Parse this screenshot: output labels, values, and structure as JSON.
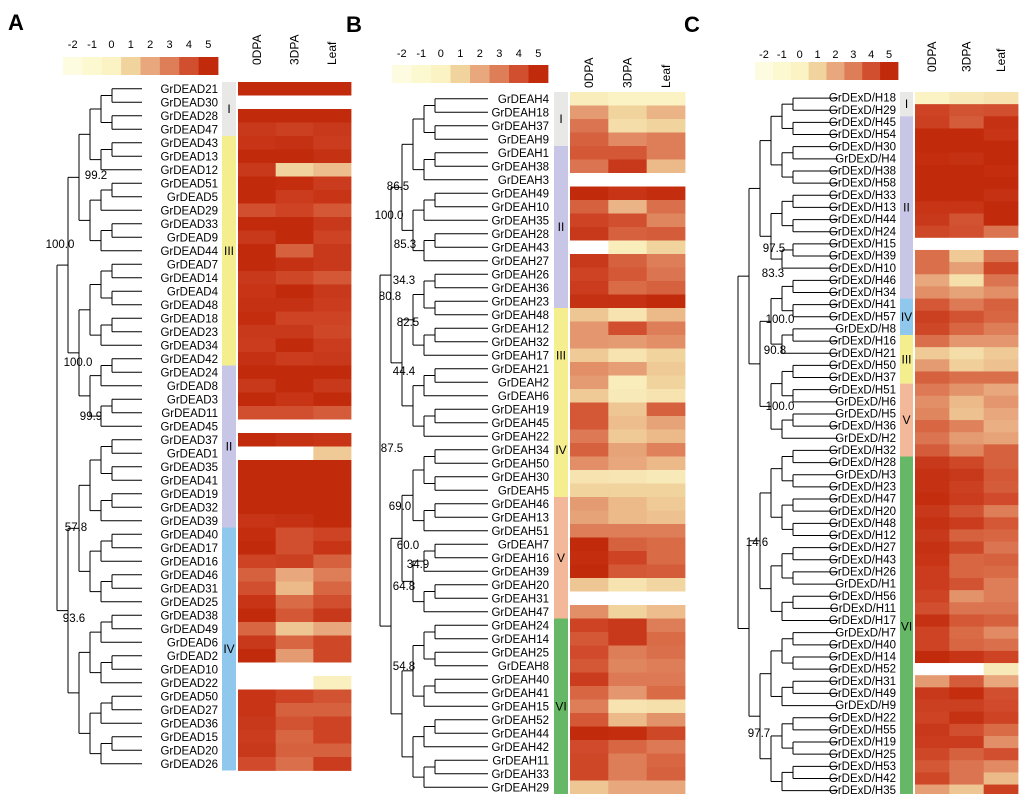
{
  "panels": [
    {
      "letter": "A",
      "legend_ticks": [
        "-2",
        "-1",
        "0",
        "1",
        "2",
        "3",
        "4",
        "5"
      ],
      "columns": [
        "0DPA",
        "3DPA",
        "Leaf"
      ],
      "genes": [
        "GrDEAD21",
        "GrDEAD30",
        "GrDEAD28",
        "GrDEAD47",
        "GrDEAD43",
        "GrDEAD13",
        "GrDEAD12",
        "GrDEAD51",
        "GrDEAD5",
        "GrDEAD29",
        "GrDEAD33",
        "GrDEAD9",
        "GrDEAD44",
        "GrDEAD7",
        "GrDEAD14",
        "GrDEAD4",
        "GrDEAD48",
        "GrDEAD18",
        "GrDEAD23",
        "GrDEAD34",
        "GrDEAD42",
        "GrDEAD24",
        "GrDEAD8",
        "GrDEAD3",
        "GrDEAD11",
        "GrDEAD45",
        "GrDEAD37",
        "GrDEAD1",
        "GrDEAD35",
        "GrDEAD41",
        "GrDEAD19",
        "GrDEAD32",
        "GrDEAD39",
        "GrDEAD40",
        "GrDEAD17",
        "GrDEAD16",
        "GrDEAD46",
        "GrDEAD31",
        "GrDEAD25",
        "GrDEAD38",
        "GrDEAD49",
        "GrDEAD6",
        "GrDEAD2",
        "GrDEAD10",
        "GrDEAD22",
        "GrDEAD50",
        "GrDEAD27",
        "GrDEAD36",
        "GrDEAD15",
        "GrDEAD20",
        "GrDEAD26"
      ],
      "values": [
        [
          5,
          5,
          5
        ],
        [
          null,
          null,
          null
        ],
        [
          5,
          5,
          5
        ],
        [
          4.6,
          4.4,
          4.6
        ],
        [
          4.7,
          4.8,
          4.5
        ],
        [
          5,
          5,
          4.8
        ],
        [
          4.6,
          1,
          1.5
        ],
        [
          5,
          4.9,
          4.5
        ],
        [
          5,
          4.5,
          4.7
        ],
        [
          4,
          4.3,
          3.8
        ],
        [
          5,
          5,
          4.6
        ],
        [
          4.6,
          5,
          4.3
        ],
        [
          5,
          3.6,
          4.6
        ],
        [
          5,
          4.8,
          4.6
        ],
        [
          4.6,
          4.2,
          3.8
        ],
        [
          4.7,
          5,
          4.6
        ],
        [
          4.8,
          4.8,
          4.5
        ],
        [
          4.9,
          4.3,
          4.3
        ],
        [
          4.6,
          4.6,
          4.2
        ],
        [
          4.5,
          5,
          4.5
        ],
        [
          4.8,
          4.5,
          4.6
        ],
        [
          5,
          5,
          5
        ],
        [
          4.6,
          5,
          4.6
        ],
        [
          5,
          4.7,
          5
        ],
        [
          4,
          4,
          3.7
        ],
        [
          null,
          null,
          null
        ],
        [
          5,
          4.8,
          4.7
        ],
        [
          null,
          null,
          1.2
        ],
        [
          5,
          5,
          5
        ],
        [
          5,
          5,
          5
        ],
        [
          5,
          5,
          5
        ],
        [
          5,
          5,
          5
        ],
        [
          4.7,
          4.8,
          5
        ],
        [
          4.9,
          4,
          4.3
        ],
        [
          5,
          4,
          4.7
        ],
        [
          4.3,
          4.4,
          3.6
        ],
        [
          3.6,
          2,
          3
        ],
        [
          4,
          1.6,
          3.5
        ],
        [
          4.7,
          3.4,
          4
        ],
        [
          5,
          3.8,
          4.6
        ],
        [
          3.5,
          1.3,
          2
        ],
        [
          4.6,
          3.5,
          4.2
        ],
        [
          5,
          2.3,
          4.2
        ],
        [
          null,
          null,
          null
        ],
        [
          null,
          null,
          0.1
        ],
        [
          4.7,
          4.3,
          3.9
        ],
        [
          4.7,
          3.6,
          3.6
        ],
        [
          4.6,
          3.9,
          4.3
        ],
        [
          4.5,
          3.5,
          4.3
        ],
        [
          4.6,
          3.6,
          3.6
        ],
        [
          4.1,
          3.3,
          4.5
        ]
      ],
      "subfamilies": [
        {
          "label": "I",
          "start": 0,
          "end": 3,
          "color": "#e8e8e6"
        },
        {
          "label": "III",
          "start": 4,
          "end": 20,
          "color": "#f5ee8f"
        },
        {
          "label": "II",
          "start": 21,
          "end": 32,
          "color": "#c8c6e6"
        },
        {
          "label": "IV",
          "start": 33,
          "end": 50,
          "color": "#8fc8ec"
        }
      ],
      "bootstraps": [
        "99.2",
        "100.0",
        "100.0",
        "99.9",
        "57.8",
        "93.6"
      ]
    },
    {
      "letter": "B",
      "legend_ticks": [
        "-2",
        "-1",
        "0",
        "1",
        "2",
        "3",
        "4",
        "5"
      ],
      "columns": [
        "0DPA",
        "3DPA",
        "Leaf"
      ],
      "genes": [
        "GrDEAH4",
        "GrDEAH18",
        "GrDEAH37",
        "GrDEAH9",
        "GrDEAH1",
        "GrDEAH38",
        "GrDEAH3",
        "GrDEAH49",
        "GrDEAH10",
        "GrDEAH35",
        "GrDEAH28",
        "GrDEAH43",
        "GrDEAH27",
        "GrDEAH26",
        "GrDEAH36",
        "GrDEAH23",
        "GrDEAH48",
        "GrDEAH12",
        "GrDEAH32",
        "GrDEAH17",
        "GrDEAH21",
        "GrDEAH2",
        "GrDEAH6",
        "GrDEAH19",
        "GrDEAH45",
        "GrDEAH22",
        "GrDEAH34",
        "GrDEAH50",
        "GrDEAH30",
        "GrDEAH5",
        "GrDEAH46",
        "GrDEAH13",
        "GrDEAH51",
        "GrDEAH7",
        "GrDEAH16",
        "GrDEAH39",
        "GrDEAH20",
        "GrDEAH31",
        "GrDEAH47",
        "GrDEAH24",
        "GrDEAH14",
        "GrDEAH25",
        "GrDEAH8",
        "GrDEAH40",
        "GrDEAH41",
        "GrDEAH15",
        "GrDEAH52",
        "GrDEAH44",
        "GrDEAH42",
        "GrDEAH11",
        "GrDEAH33",
        "GrDEAH29"
      ],
      "values": [
        [
          0.2,
          0,
          0
        ],
        [
          2.3,
          1,
          1.7
        ],
        [
          3.2,
          0.7,
          1
        ],
        [
          3.6,
          2.7,
          3
        ],
        [
          3.8,
          3.8,
          3
        ],
        [
          3.2,
          4.6,
          1.6
        ],
        [
          null,
          null,
          null
        ],
        [
          5,
          4.7,
          4.9
        ],
        [
          3.6,
          1.7,
          3.3
        ],
        [
          4.3,
          4,
          2.8
        ],
        [
          4.6,
          3.6,
          3.7
        ],
        [
          null,
          0.2,
          1
        ],
        [
          4.6,
          3.6,
          3
        ],
        [
          4.3,
          3.8,
          3.2
        ],
        [
          4.5,
          3.4,
          3.6
        ],
        [
          4.8,
          4.8,
          5
        ],
        [
          1.3,
          0.5,
          1.6
        ],
        [
          2.4,
          4,
          3
        ],
        [
          2.4,
          2.3,
          2.6
        ],
        [
          1.2,
          0.5,
          1
        ],
        [
          2.6,
          2.2,
          1.2
        ],
        [
          2.3,
          0.2,
          1
        ],
        [
          1.2,
          0.3,
          0.5
        ],
        [
          3.8,
          1.3,
          3.6
        ],
        [
          3.8,
          1.5,
          2.1
        ],
        [
          3.1,
          1.2,
          1.6
        ],
        [
          3.6,
          2.1,
          2.9
        ],
        [
          2.6,
          2,
          1.6
        ],
        [
          0.5,
          0.4,
          0.3
        ],
        [
          1,
          1,
          1
        ],
        [
          2.3,
          1.6,
          1.2
        ],
        [
          2.1,
          1.6,
          1.4
        ],
        [
          3,
          3,
          3
        ],
        [
          5,
          3.6,
          3.4
        ],
        [
          4.9,
          4.3,
          3.4
        ],
        [
          5,
          3.8,
          3.7
        ],
        [
          1.3,
          0.5,
          0.9
        ],
        [
          null,
          null,
          null
        ],
        [
          2.6,
          1,
          1.5
        ],
        [
          4.3,
          4.6,
          3
        ],
        [
          3.8,
          4.6,
          3.4
        ],
        [
          4.1,
          3,
          3.3
        ],
        [
          3.8,
          2.8,
          3
        ],
        [
          4.5,
          3.1,
          3.1
        ],
        [
          3.5,
          2.4,
          3.4
        ],
        [
          3,
          0.5,
          0.6
        ],
        [
          3.8,
          1.6,
          2.5
        ],
        [
          5,
          4.9,
          4.2
        ],
        [
          4.1,
          3.5,
          3.1
        ],
        [
          4.2,
          3,
          3.5
        ],
        [
          4.2,
          3,
          3.6
        ],
        [
          1.3,
          2,
          2
        ]
      ],
      "subfamilies": [
        {
          "label": "I",
          "start": 0,
          "end": 3,
          "color": "#e8e8e6"
        },
        {
          "label": "II",
          "start": 4,
          "end": 15,
          "color": "#c8c6e6"
        },
        {
          "label": "III",
          "start": 16,
          "end": 22,
          "color": "#f5ee8f"
        },
        {
          "label": "IV",
          "start": 23,
          "end": 29,
          "color": "#f5ee8f"
        },
        {
          "label": "V",
          "start": 30,
          "end": 38,
          "color": "#f3b79a"
        },
        {
          "label": "VI",
          "start": 39,
          "end": 51,
          "color": "#66b866"
        }
      ],
      "bootstraps": [
        "86.5",
        "100.0",
        "85.3",
        "34.3",
        "80.8",
        "82.5",
        "44.4",
        "87.5",
        "69.0",
        "60.0",
        "34.9",
        "64.8",
        "54.8"
      ]
    },
    {
      "letter": "C",
      "legend_ticks": [
        "-2",
        "-1",
        "0",
        "1",
        "2",
        "3",
        "4",
        "5"
      ],
      "columns": [
        "0DPA",
        "3DPA",
        "Leaf"
      ],
      "genes": [
        "GrDExD/H18",
        "GrDExD/H29",
        "GrDExD/H45",
        "GrDExD/H54",
        "GrDExD/H30",
        "GrDExD/H4",
        "GrDExD/H38",
        "GrDExD/H58",
        "GrDExD/H33",
        "GrDExD/H13",
        "GrDExD/H44",
        "GrDExD/H24",
        "GrDExD/H15",
        "GrDExD/H39",
        "GrDExD/H10",
        "GrDExD/H46",
        "GrDExD/H34",
        "GrDExD/H41",
        "GrDExD/H57",
        "GrDExD/H8",
        "GrDExD/H16",
        "GrDExD/H21",
        "GrDExD/H50",
        "GrDExD/H37",
        "GrDExD/H51",
        "GrDExD/H6",
        "GrDExD/H5",
        "GrDExD/H36",
        "GrDExD/H2",
        "GrDExD/H32",
        "GrDExD/H28",
        "GrDExD/H3",
        "GrDExD/H23",
        "GrDExD/H47",
        "GrDExD/H20",
        "GrDExD/H48",
        "GrDExD/H12",
        "GrDExD/H27",
        "GrDExD/H43",
        "GrDExD/H26",
        "GrDExD/H1",
        "GrDExD/H56",
        "GrDExD/H11",
        "GrDExD/H17",
        "GrDExD/H7",
        "GrDExD/H40",
        "GrDExD/H14",
        "GrDExD/H52",
        "GrDExD/H31",
        "GrDExD/H49",
        "GrDExD/H9",
        "GrDExD/H22",
        "GrDExD/H55",
        "GrDExD/H19",
        "GrDExD/H25",
        "GrDExD/H53",
        "GrDExD/H42",
        "GrDExD/H35"
      ],
      "values": [
        [
          0,
          0.3,
          0.5
        ],
        [
          4.3,
          3.9,
          4
        ],
        [
          4.4,
          3.7,
          4.8
        ],
        [
          5,
          5,
          4.7
        ],
        [
          5,
          5,
          5
        ],
        [
          4.9,
          4.8,
          5
        ],
        [
          5,
          5,
          4.9
        ],
        [
          5,
          5,
          5
        ],
        [
          5,
          5,
          4.8
        ],
        [
          4.7,
          4.7,
          5
        ],
        [
          4.6,
          3.9,
          5
        ],
        [
          4.2,
          4,
          3.2
        ],
        [
          null,
          null,
          null
        ],
        [
          3.3,
          1.2,
          3.2
        ],
        [
          3.3,
          2.2,
          4.2
        ],
        [
          2,
          0.6,
          3.2
        ],
        [
          2.6,
          2.1,
          2.6
        ],
        [
          3.8,
          3.1,
          3.6
        ],
        [
          4.4,
          3.9,
          3.5
        ],
        [
          4.2,
          3.5,
          3
        ],
        [
          3.3,
          2.4,
          2.4
        ],
        [
          1.2,
          0.7,
          1.2
        ],
        [
          2.3,
          1.1,
          1.4
        ],
        [
          3.6,
          3.3,
          3.3
        ],
        [
          3.1,
          2.5,
          2
        ],
        [
          2.6,
          1.6,
          2.4
        ],
        [
          2.8,
          1.4,
          2
        ],
        [
          3.5,
          2.9,
          1.8
        ],
        [
          3.2,
          2.3,
          2.1
        ],
        [
          3.7,
          2.8,
          3.6
        ],
        [
          4.6,
          4.2,
          3.6
        ],
        [
          4.8,
          4.6,
          3.8
        ],
        [
          4.8,
          4.4,
          3.7
        ],
        [
          4.9,
          4.5,
          4.1
        ],
        [
          4.6,
          3.9,
          3
        ],
        [
          4.8,
          4.5,
          3.8
        ],
        [
          4.6,
          3.6,
          3.5
        ],
        [
          4.8,
          4.2,
          3.2
        ],
        [
          4.7,
          3.5,
          3.6
        ],
        [
          4.5,
          3.5,
          3.4
        ],
        [
          4.5,
          3.9,
          3
        ],
        [
          4.3,
          2.5,
          3
        ],
        [
          4,
          3.2,
          3.2
        ],
        [
          4.8,
          3.8,
          3.6
        ],
        [
          4.3,
          3.4,
          2.7
        ],
        [
          4.3,
          3.5,
          3.3
        ],
        [
          5,
          4.7,
          4.3
        ],
        [
          null,
          null,
          0.3
        ],
        [
          2.3,
          3.7,
          2
        ],
        [
          4.6,
          4.9,
          4
        ],
        [
          4.4,
          4.4,
          4.1
        ],
        [
          4.3,
          4.8,
          4.3
        ],
        [
          4.6,
          4,
          3.4
        ],
        [
          4.5,
          4.5,
          2.6
        ],
        [
          4.2,
          3.6,
          4
        ],
        [
          3.8,
          3.2,
          2.7
        ],
        [
          4.2,
          3.2,
          1.6
        ],
        [
          2.2,
          1.3,
          4.4
        ]
      ],
      "subfamilies": [
        {
          "label": "I",
          "start": 0,
          "end": 1,
          "color": "#e8e8e6"
        },
        {
          "label": "II",
          "start": 2,
          "end": 16,
          "color": "#c8c6e6"
        },
        {
          "label": "IV",
          "start": 17,
          "end": 19,
          "color": "#8fc8ec"
        },
        {
          "label": "III",
          "start": 20,
          "end": 23,
          "color": "#f5ee8f"
        },
        {
          "label": "V",
          "start": 24,
          "end": 29,
          "color": "#f3b79a"
        },
        {
          "label": "VI",
          "start": 30,
          "end": 57,
          "color": "#66b866"
        }
      ],
      "bootstraps": [
        "97.5",
        "83.3",
        "100.0",
        "90.8",
        "100.0",
        "14.6",
        "97.7"
      ]
    }
  ]
}
